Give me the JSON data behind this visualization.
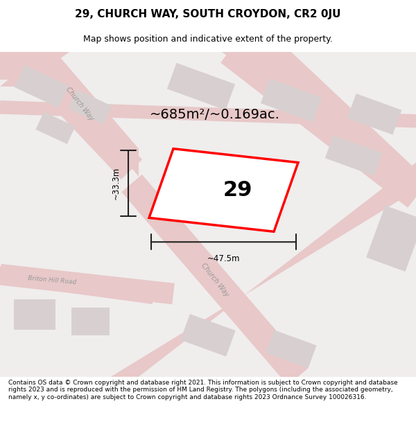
{
  "title": "29, CHURCH WAY, SOUTH CROYDON, CR2 0JU",
  "subtitle": "Map shows position and indicative extent of the property.",
  "footer": "Contains OS data © Crown copyright and database right 2021. This information is subject to Crown copyright and database rights 2023 and is reproduced with the permission of HM Land Registry. The polygons (including the associated geometry, namely x, y co-ordinates) are subject to Crown copyright and database rights 2023 Ordnance Survey 100026316.",
  "area_label": "~685m²/~0.169ac.",
  "number_label": "29",
  "width_label": "~47.5m",
  "height_label": "~33.3m",
  "bg_color": "#f5f0f0",
  "map_bg": "#f0eded",
  "road_color": "#e8c8c8",
  "building_color": "#d8d0d0",
  "highlight_color": "#ff0000",
  "dim_line_color": "#222222",
  "road_label_color": "#888888",
  "title_fontsize": 11,
  "subtitle_fontsize": 9,
  "footer_fontsize": 6.5,
  "label_fontsize": 14,
  "number_fontsize": 22
}
